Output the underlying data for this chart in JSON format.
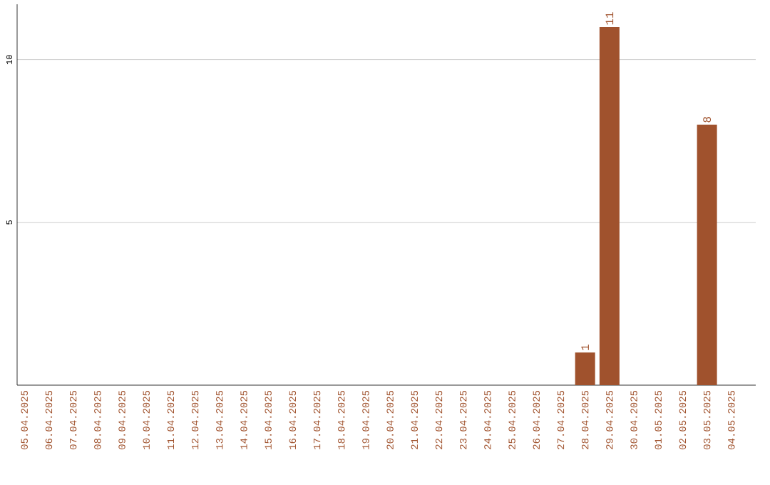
{
  "chart_data": {
    "type": "bar",
    "categories": [
      "05.04.2025",
      "06.04.2025",
      "07.04.2025",
      "08.04.2025",
      "09.04.2025",
      "10.04.2025",
      "11.04.2025",
      "12.04.2025",
      "13.04.2025",
      "14.04.2025",
      "15.04.2025",
      "16.04.2025",
      "17.04.2025",
      "18.04.2025",
      "19.04.2025",
      "20.04.2025",
      "21.04.2025",
      "22.04.2025",
      "23.04.2025",
      "24.04.2025",
      "25.04.2025",
      "26.04.2025",
      "27.04.2025",
      "28.04.2025",
      "29.04.2025",
      "30.04.2025",
      "01.05.2025",
      "02.05.2025",
      "03.05.2025",
      "04.05.2025"
    ],
    "values": [
      0,
      0,
      0,
      0,
      0,
      0,
      0,
      0,
      0,
      0,
      0,
      0,
      0,
      0,
      0,
      0,
      0,
      0,
      0,
      0,
      0,
      0,
      0,
      1,
      11,
      0,
      0,
      0,
      8,
      0
    ],
    "value_labels": [
      null,
      null,
      null,
      null,
      null,
      null,
      null,
      null,
      null,
      null,
      null,
      null,
      null,
      null,
      null,
      null,
      null,
      null,
      null,
      null,
      null,
      null,
      null,
      "1",
      "11",
      null,
      null,
      null,
      "8",
      null
    ],
    "color": "#a0522d",
    "ylim": [
      0,
      11.7
    ],
    "yticks": [
      5,
      10
    ],
    "grid": "y"
  }
}
